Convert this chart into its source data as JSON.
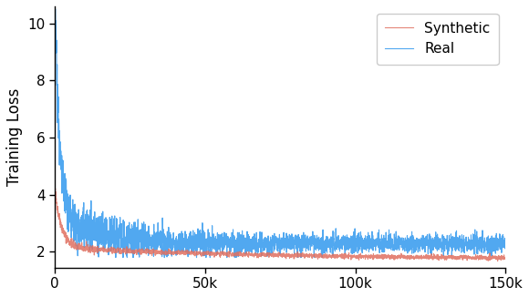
{
  "title": "",
  "xlabel": "",
  "ylabel": "Training Loss",
  "xlim": [
    0,
    150000
  ],
  "ylim": [
    1.45,
    10.6
  ],
  "yticks": [
    2,
    4,
    6,
    8,
    10
  ],
  "xtick_labels": [
    "0",
    "50k",
    "100k",
    "150k"
  ],
  "xtick_values": [
    0,
    50000,
    100000,
    150000
  ],
  "synthetic_color": "#E07060",
  "real_color": "#3399EE",
  "synthetic_label": "Synthetic",
  "real_label": "Real",
  "line_width": 0.8,
  "n_points": 3000,
  "seed": 42
}
